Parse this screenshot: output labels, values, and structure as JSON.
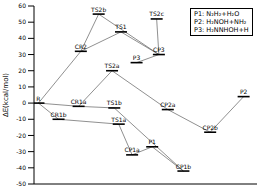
{
  "chart_data": {
    "type": "energy_profile",
    "y_label": "ΔE(kcal/mol)",
    "ylim": [
      -50,
      60
    ],
    "yticks": [
      -50,
      -40,
      -30,
      -20,
      -10,
      0,
      10,
      20,
      30,
      40,
      50,
      60
    ],
    "xlim": [
      0,
      100
    ],
    "tick_labels": "y",
    "levels": [
      {
        "label": "R",
        "x": 2,
        "value": 0
      },
      {
        "label": "CR1b",
        "x": 11,
        "value": -10
      },
      {
        "label": "CR2",
        "x": 21,
        "value": 32
      },
      {
        "label": "CR1a",
        "x": 20,
        "value": -2
      },
      {
        "label": "TS2b",
        "x": 29,
        "value": 55
      },
      {
        "label": "TS1",
        "x": 39,
        "value": 44
      },
      {
        "label": "TS2a",
        "x": 35,
        "value": 20
      },
      {
        "label": "TS1b",
        "x": 36,
        "value": -3
      },
      {
        "label": "TS1a",
        "x": 38,
        "value": -13
      },
      {
        "label": "CP1a",
        "x": 44,
        "value": -32
      },
      {
        "label": "P3",
        "x": 46,
        "value": 25
      },
      {
        "label": "TS2c",
        "x": 55,
        "value": 52
      },
      {
        "label": "CP3",
        "x": 56,
        "value": 30
      },
      {
        "label": "P1",
        "x": 53,
        "value": -27
      },
      {
        "label": "CP2a",
        "x": 60,
        "value": -4
      },
      {
        "label": "CP1b",
        "x": 67,
        "value": -42
      },
      {
        "label": "CP2b",
        "x": 79,
        "value": -18
      },
      {
        "label": "P2",
        "x": 94,
        "value": 4
      }
    ],
    "connections": [
      [
        "R",
        "CR2"
      ],
      [
        "R",
        "CR1a"
      ],
      [
        "R",
        "CR1b"
      ],
      [
        "CR2",
        "TS2b"
      ],
      [
        "CR2",
        "TS1"
      ],
      [
        "TS2b",
        "CP3"
      ],
      [
        "TS1",
        "CP3"
      ],
      [
        "TS2c",
        "CP3"
      ],
      [
        "CP3",
        "P3"
      ],
      [
        "CR1a",
        "TS2a"
      ],
      [
        "CR1a",
        "TS1b"
      ],
      [
        "TS2a",
        "CP2a"
      ],
      [
        "CR1b",
        "TS1a"
      ],
      [
        "TS1a",
        "CP1a"
      ],
      [
        "TS1b",
        "CP1b"
      ],
      [
        "CP1a",
        "P1"
      ],
      [
        "CP1b",
        "P1"
      ],
      [
        "CP2a",
        "CP2b"
      ],
      [
        "CP2b",
        "P2"
      ]
    ],
    "annotations": [
      "P1: N₂H₂+H₂O",
      "P2: H₂NOH+NH₂",
      "P3: H₂NNHOH+H"
    ]
  }
}
